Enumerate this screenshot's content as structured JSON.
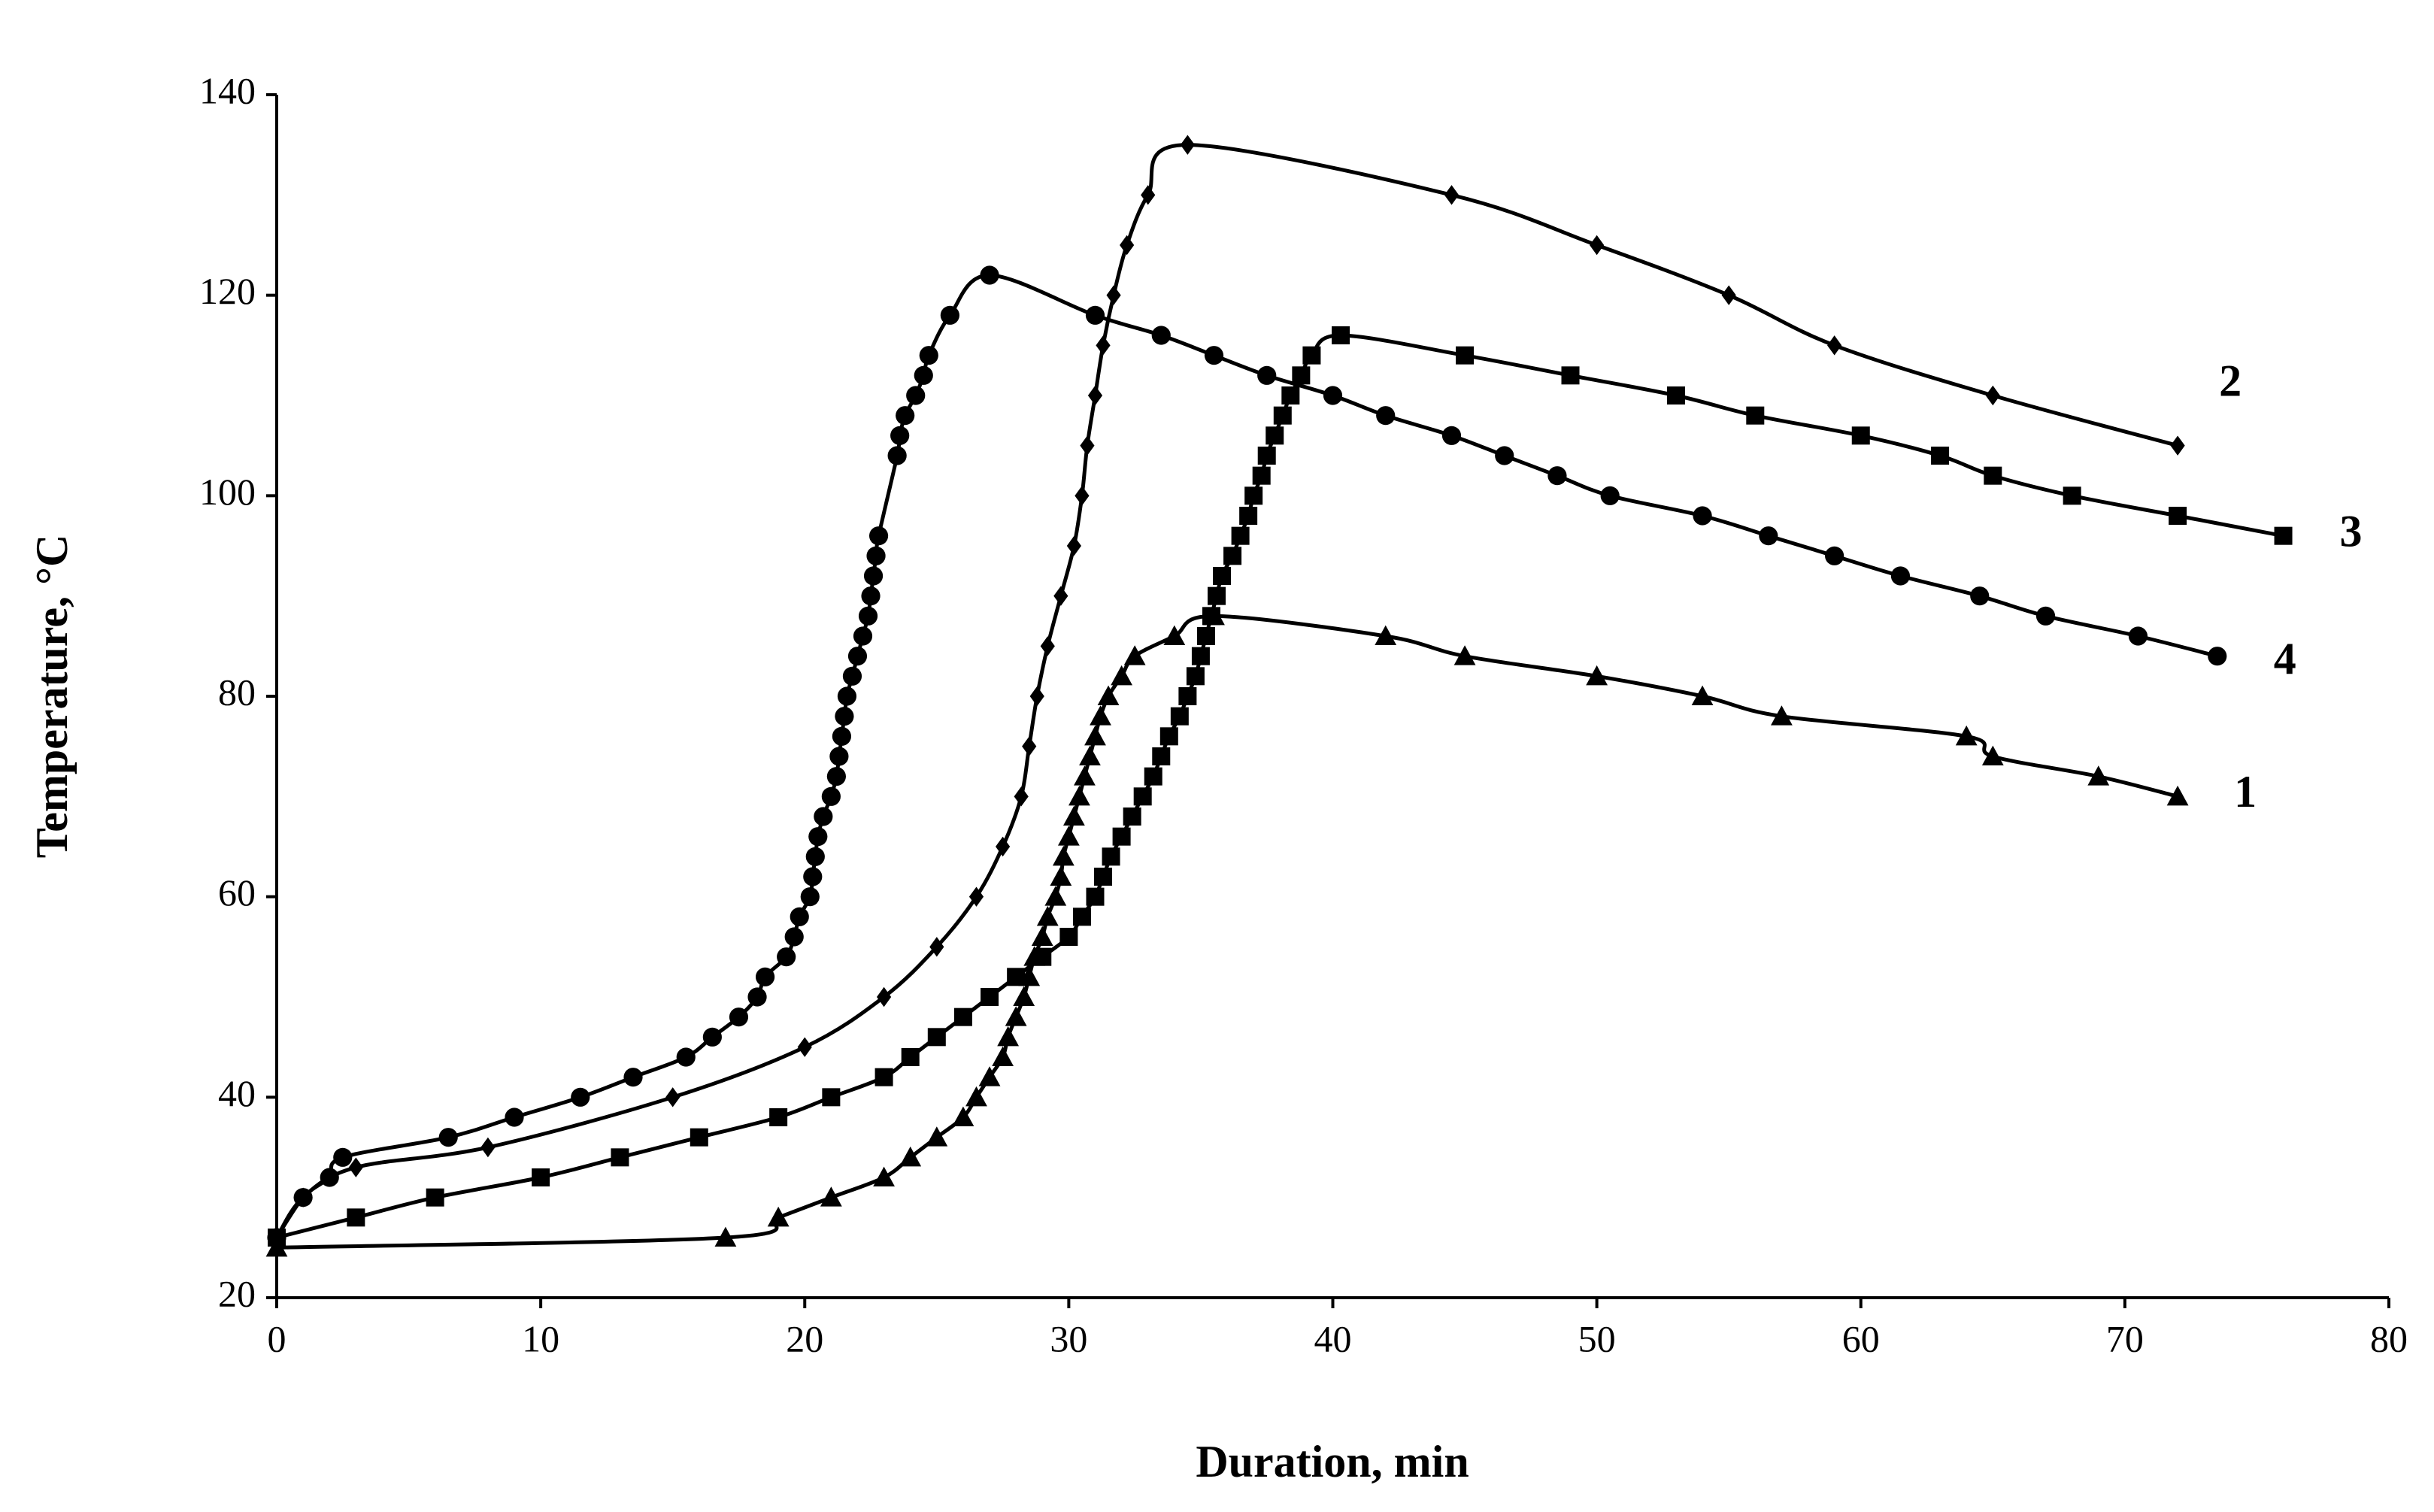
{
  "chart_data": {
    "type": "line",
    "x_label": "Duration, min",
    "y_label": "Temperature, °C",
    "xlim": [
      0,
      80
    ],
    "xticks": [
      0,
      10,
      20,
      30,
      40,
      50,
      60,
      70,
      80
    ],
    "ylim": [
      20,
      140
    ],
    "yticks": [
      20,
      40,
      60,
      80,
      100,
      120,
      140
    ],
    "grid": false,
    "series": [
      {
        "name": "1",
        "color": "#000000",
        "marker": "triangle",
        "x": [
          0,
          17,
          19,
          21,
          23,
          24,
          25,
          26,
          26.5,
          27,
          27.5,
          27.7,
          28,
          28.3,
          28.5,
          28.7,
          29,
          29.2,
          29.5,
          29.7,
          29.8,
          30,
          30.2,
          30.4,
          30.6,
          30.8,
          31,
          31.2,
          31.5,
          32,
          32.5,
          34,
          35.5,
          42,
          45,
          50,
          54,
          57,
          64,
          65,
          69,
          72
        ],
        "values": [
          25,
          26,
          28,
          30,
          32,
          34,
          36,
          38,
          40,
          42,
          44,
          46,
          48,
          50,
          52,
          54,
          56,
          58,
          60,
          62,
          64,
          66,
          68,
          70,
          72,
          74,
          76,
          78,
          80,
          82,
          84,
          86,
          88,
          86,
          84,
          82,
          80,
          78,
          76,
          74,
          72,
          70
        ]
      },
      {
        "name": "2",
        "color": "#000000",
        "marker": "diamond",
        "x": [
          0,
          1,
          3,
          8,
          15,
          20,
          23,
          25,
          26.5,
          27.5,
          28.2,
          28.5,
          28.8,
          29.2,
          29.7,
          30.2,
          30.5,
          30.7,
          31,
          31.3,
          31.7,
          32.2,
          33,
          34.5,
          44.5,
          50,
          55,
          59,
          65,
          72
        ],
        "values": [
          26,
          30,
          33,
          35,
          40,
          45,
          50,
          55,
          60,
          65,
          70,
          75,
          80,
          85,
          90,
          95,
          100,
          105,
          110,
          115,
          120,
          125,
          130,
          135,
          130,
          125,
          120,
          115,
          110,
          105
        ]
      },
      {
        "name": "3",
        "color": "#000000",
        "marker": "square",
        "x": [
          0,
          3,
          6,
          10,
          13,
          16,
          19,
          21,
          23,
          24,
          25,
          26,
          27,
          28,
          29,
          30,
          30.5,
          31,
          31.3,
          31.6,
          32,
          32.4,
          32.8,
          33.2,
          33.5,
          33.8,
          34.2,
          34.5,
          34.8,
          35,
          35.2,
          35.4,
          35.6,
          35.8,
          36.2,
          36.5,
          36.8,
          37,
          37.3,
          37.5,
          37.8,
          38.1,
          38.4,
          38.8,
          39.2,
          40.3,
          45,
          49,
          53,
          56,
          60,
          63,
          65,
          68,
          72,
          76
        ],
        "values": [
          26,
          28,
          30,
          32,
          34,
          36,
          38,
          40,
          42,
          44,
          46,
          48,
          50,
          52,
          54,
          56,
          58,
          60,
          62,
          64,
          66,
          68,
          70,
          72,
          74,
          76,
          78,
          80,
          82,
          84,
          86,
          88,
          90,
          92,
          94,
          96,
          98,
          100,
          102,
          104,
          106,
          108,
          110,
          112,
          114,
          116,
          114,
          112,
          110,
          108,
          106,
          104,
          102,
          100,
          98,
          96
        ]
      },
      {
        "name": "4",
        "color": "#000000",
        "marker": "circle",
        "x": [
          0,
          1,
          2,
          2.5,
          6.5,
          9,
          11.5,
          13.5,
          15.5,
          16.5,
          17.5,
          18.2,
          18.5,
          19.3,
          19.6,
          19.8,
          20.2,
          20.3,
          20.4,
          20.5,
          20.7,
          21,
          21.2,
          21.3,
          21.4,
          21.5,
          21.6,
          21.8,
          22,
          22.2,
          22.4,
          22.5,
          22.6,
          22.7,
          22.8,
          23.5,
          23.6,
          23.8,
          24.2,
          24.5,
          24.7,
          25.5,
          27,
          31,
          33.5,
          35.5,
          37.5,
          40,
          42,
          44.5,
          46.5,
          48.5,
          50.5,
          54,
          56.5,
          59,
          61.5,
          64.5,
          67,
          70.5,
          73.5
        ],
        "values": [
          26,
          30,
          32,
          34,
          36,
          38,
          40,
          42,
          44,
          46,
          48,
          50,
          52,
          54,
          56,
          58,
          60,
          62,
          64,
          66,
          68,
          70,
          72,
          74,
          76,
          78,
          80,
          82,
          84,
          86,
          88,
          90,
          92,
          94,
          96,
          104,
          106,
          108,
          110,
          112,
          114,
          118,
          122,
          118,
          116,
          114,
          112,
          110,
          108,
          106,
          104,
          102,
          100,
          98,
          96,
          94,
          92,
          90,
          88,
          86,
          84
        ]
      }
    ]
  }
}
